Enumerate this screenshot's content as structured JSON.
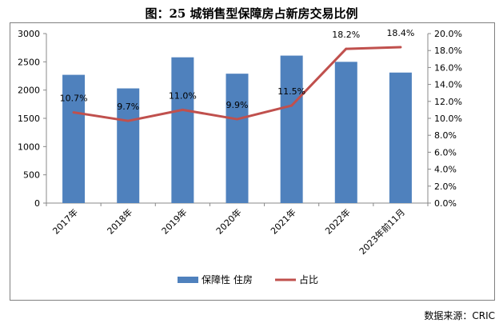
{
  "title": "图：25 城销售型保障房占新房交易比例",
  "source": "数据来源：CRIC",
  "chart_data": {
    "type": "bar+line",
    "categories": [
      "2017年",
      "2018年",
      "2019年",
      "2020年",
      "2021年",
      "2022年",
      "2023年前11月"
    ],
    "series": [
      {
        "name": "保障性 住房",
        "type": "bar",
        "axis": "left",
        "color": "#4f81bd",
        "values": [
          2270,
          2030,
          2580,
          2290,
          2610,
          2500,
          2310
        ]
      },
      {
        "name": "占比",
        "type": "line",
        "axis": "right",
        "color": "#c0504d",
        "values": [
          10.7,
          9.7,
          11.0,
          9.9,
          11.5,
          18.2,
          18.4
        ],
        "labels": [
          "10.7%",
          "9.7%",
          "11.0%",
          "9.9%",
          "11.5%",
          "18.2%",
          "18.4%"
        ]
      }
    ],
    "ylim_left": [
      0,
      3000
    ],
    "yticks_left": [
      "0",
      "500",
      "1000",
      "1500",
      "2000",
      "2500",
      "3000"
    ],
    "ylim_right": [
      0,
      20
    ],
    "yticks_right": [
      "0.0%",
      "2.0%",
      "4.0%",
      "6.0%",
      "8.0%",
      "10.0%",
      "12.0%",
      "14.0%",
      "16.0%",
      "18.0%",
      "20.0%"
    ],
    "grid": false,
    "legend_position": "bottom"
  }
}
